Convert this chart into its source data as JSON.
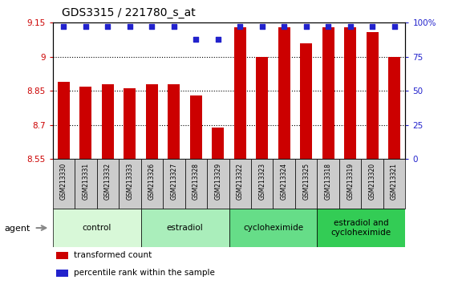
{
  "title": "GDS3315 / 221780_s_at",
  "samples": [
    "GSM213330",
    "GSM213331",
    "GSM213332",
    "GSM213333",
    "GSM213326",
    "GSM213327",
    "GSM213328",
    "GSM213329",
    "GSM213322",
    "GSM213323",
    "GSM213324",
    "GSM213325",
    "GSM213318",
    "GSM213319",
    "GSM213320",
    "GSM213321"
  ],
  "bar_values": [
    8.89,
    8.87,
    8.88,
    8.86,
    8.88,
    8.88,
    8.83,
    8.69,
    9.13,
    9.0,
    9.13,
    9.06,
    9.13,
    9.13,
    9.11,
    9.0
  ],
  "percentile_values": [
    97,
    97,
    97,
    97,
    97,
    97,
    88,
    88,
    97,
    97,
    97,
    97,
    97,
    97,
    97,
    97
  ],
  "bar_color": "#CC0000",
  "dot_color": "#2222CC",
  "ylim_left": [
    8.55,
    9.15
  ],
  "ylim_right": [
    0,
    100
  ],
  "yticks_left": [
    8.55,
    8.7,
    8.85,
    9.0,
    9.15
  ],
  "yticks_right": [
    0,
    25,
    50,
    75,
    100
  ],
  "ytick_labels_left": [
    "8.55",
    "8.7",
    "8.85",
    "9",
    "9.15"
  ],
  "ytick_labels_right": [
    "0",
    "25",
    "50",
    "75",
    "100%"
  ],
  "groups": [
    {
      "label": "control",
      "start": 0,
      "end": 4,
      "color": "#d8f8d8"
    },
    {
      "label": "estradiol",
      "start": 4,
      "end": 8,
      "color": "#aaeebb"
    },
    {
      "label": "cycloheximide",
      "start": 8,
      "end": 12,
      "color": "#66dd88"
    },
    {
      "label": "estradiol and\ncycloheximide",
      "start": 12,
      "end": 16,
      "color": "#33cc55"
    }
  ],
  "agent_label": "agent",
  "legend_items": [
    {
      "color": "#CC0000",
      "label": "transformed count"
    },
    {
      "color": "#2222CC",
      "label": "percentile rank within the sample"
    }
  ],
  "bar_bottom": 8.55,
  "xlabel_color": "#CC0000",
  "ylabel_right_color": "#2222CC",
  "sample_box_color": "#cccccc",
  "title_fontsize": 10,
  "bar_width": 0.55
}
